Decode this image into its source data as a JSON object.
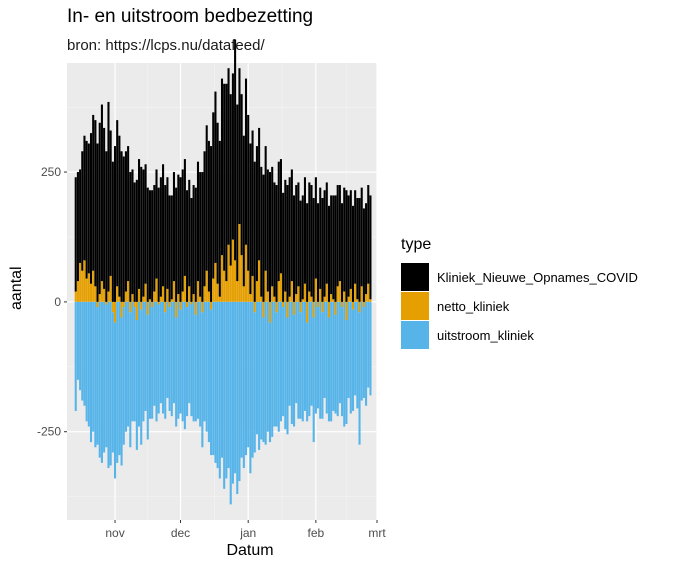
{
  "chart_data": {
    "type": "bar",
    "stacked": true,
    "title": "In- en uitstroom bedbezetting",
    "subtitle": "bron: https://lcps.nu/datafeed/",
    "xlabel": "Datum",
    "ylabel": "aantal",
    "x_start": "2020-10-14",
    "x_end": "2021-02-24",
    "xlim": [
      "2020-10-10",
      "2021-03-01"
    ],
    "ylim": [
      -420,
      460
    ],
    "yticks": [
      -250,
      0,
      250
    ],
    "yticklabels": [
      "-250",
      "0",
      "250"
    ],
    "xticks": [
      "2020-11-01",
      "2020-12-01",
      "2021-01-01",
      "2021-02-01",
      "2021-03-01"
    ],
    "xticklabels": [
      "nov",
      "dec",
      "jan",
      "feb",
      "mrt"
    ],
    "grid": true,
    "legend": {
      "title": "type",
      "position": "right"
    },
    "series": [
      {
        "name": "Kliniek_Nieuwe_Opnames_COVID",
        "color": "#000000",
        "values": [
          220,
          210,
          180,
          230,
          240,
          265,
          250,
          290,
          300,
          320,
          305,
          330,
          340,
          310,
          290,
          365,
          280,
          270,
          300,
          320,
          310,
          290,
          280,
          270,
          260,
          250,
          240,
          230,
          235,
          250,
          260,
          245,
          230,
          220,
          210,
          215,
          205,
          210,
          220,
          230,
          235,
          225,
          215,
          205,
          200,
          210,
          220,
          230,
          240,
          235,
          225,
          215,
          205,
          200,
          210,
          220,
          230,
          240,
          250,
          260,
          280,
          290,
          300,
          320,
          330,
          310,
          300,
          340,
          360,
          380,
          340,
          330,
          320,
          425,
          340,
          300,
          310,
          290,
          320,
          300,
          290,
          280,
          270,
          260,
          255,
          250,
          245,
          240,
          235,
          250,
          230,
          220,
          225,
          230,
          220,
          210,
          215,
          225,
          230,
          215,
          205,
          210,
          200,
          195,
          200,
          205,
          190,
          210,
          215,
          200,
          195,
          190,
          195,
          200,
          205,
          195,
          185,
          190,
          200,
          205,
          195,
          185,
          190,
          200,
          215,
          195,
          190,
          185,
          180,
          195,
          200,
          190,
          180,
          175,
          190,
          200
        ]
      },
      {
        "name": "netto_kliniek",
        "color": "#E69F00",
        "values": [
          20,
          40,
          75,
          60,
          80,
          45,
          55,
          35,
          60,
          30,
          -10,
          15,
          40,
          25,
          -5,
          20,
          50,
          -20,
          -40,
          30,
          10,
          -30,
          -10,
          20,
          40,
          -20,
          15,
          -10,
          -35,
          25,
          -15,
          10,
          35,
          -25,
          5,
          -10,
          20,
          45,
          -5,
          10,
          30,
          -20,
          25,
          -10,
          5,
          40,
          -30,
          15,
          -15,
          20,
          50,
          -10,
          30,
          -5,
          15,
          -25,
          40,
          10,
          -20,
          30,
          60,
          20,
          -15,
          45,
          75,
          35,
          10,
          90,
          60,
          40,
          110,
          70,
          120,
          80,
          40,
          150,
          90,
          30,
          110,
          60,
          15,
          50,
          -20,
          40,
          80,
          10,
          -30,
          60,
          20,
          -40,
          30,
          10,
          -20,
          40,
          55,
          -10,
          20,
          -30,
          10,
          40,
          -25,
          15,
          30,
          -20,
          5,
          35,
          -40,
          20,
          10,
          -30,
          45,
          -10,
          25,
          -20,
          10,
          35,
          -30,
          15,
          5,
          -25,
          30,
          40,
          -10,
          20,
          -35,
          10,
          25,
          -15,
          35,
          5,
          -20,
          30,
          -10,
          15,
          35,
          5
        ]
      },
      {
        "name": "uitstroom_kliniek",
        "color": "#56B4E9",
        "values": [
          -210,
          -150,
          -170,
          -190,
          -200,
          -230,
          -240,
          -270,
          -250,
          -280,
          -265,
          -300,
          -310,
          -290,
          -275,
          -320,
          -315,
          -270,
          -300,
          -310,
          -295,
          -285,
          -265,
          -250,
          -240,
          -260,
          -230,
          -220,
          -250,
          -240,
          -260,
          -230,
          -210,
          -240,
          -225,
          -215,
          -200,
          -230,
          -210,
          -195,
          -215,
          -205,
          -185,
          -200,
          -220,
          -195,
          -210,
          -225,
          -200,
          -230,
          -245,
          -210,
          -195,
          -215,
          -230,
          -205,
          -225,
          -240,
          -260,
          -230,
          -250,
          -270,
          -280,
          -295,
          -310,
          -320,
          -340,
          -300,
          -360,
          -340,
          -320,
          -390,
          -350,
          -330,
          -370,
          -345,
          -300,
          -320,
          -295,
          -280,
          -330,
          -300,
          -270,
          -255,
          -285,
          -265,
          -240,
          -275,
          -250,
          -230,
          -260,
          -240,
          -220,
          -250,
          -230,
          -210,
          -245,
          -225,
          -200,
          -235,
          -215,
          -195,
          -225,
          -205,
          -230,
          -210,
          -190,
          -220,
          -200,
          -240,
          -215,
          -195,
          -225,
          -205,
          -185,
          -215,
          -200,
          -230,
          -210,
          -190,
          -220,
          -195,
          -210,
          -240,
          -200,
          -185,
          -215,
          -195,
          -180,
          -205,
          -255,
          -190,
          -175,
          -200,
          -165,
          -180
        ]
      }
    ]
  }
}
